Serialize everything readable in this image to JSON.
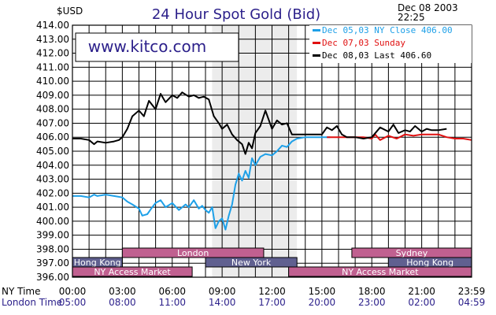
{
  "chart_data": {
    "type": "line",
    "title": "24 Hour Spot Gold (Bid)",
    "ylabel": "$USD",
    "timestamp": [
      "Dec 08 2003",
      "22:25"
    ],
    "ylim": [
      396,
      414
    ],
    "y_ticks": [
      "396.00",
      "397.00",
      "398.00",
      "399.00",
      "400.00",
      "401.00",
      "402.00",
      "403.00",
      "404.00",
      "405.00",
      "406.00",
      "407.00",
      "408.00",
      "409.00",
      "410.00",
      "411.00",
      "412.00",
      "413.00",
      "414.00"
    ],
    "x_range_hours": [
      0,
      24
    ],
    "ny_time_label": "NY Time",
    "london_time_label": "London Time",
    "ny_ticks": [
      "00:00",
      "03:00",
      "06:00",
      "09:00",
      "12:00",
      "15:00",
      "18:00",
      "21:00",
      "23:59"
    ],
    "london_ticks": [
      "05:00",
      "08:00",
      "11:00",
      "14:00",
      "17:00",
      "20:00",
      "23:00",
      "02:00",
      "04:59"
    ],
    "watermark": "www.kitco.com",
    "legend": [
      {
        "text": "Dec 05,03  NY  Close  406.00",
        "color": "#1ea0e8"
      },
      {
        "text": "Dec 07,03          Sunday",
        "color": "#e01010"
      },
      {
        "text": "Dec 08,03  Last  406.60",
        "color": "#000000"
      }
    ],
    "sessions": [
      {
        "label": "London",
        "start": 3,
        "end": 11.5,
        "row": 0,
        "color": "#c06090"
      },
      {
        "label": "Sydney",
        "start": 16.8,
        "end": 24,
        "row": 0,
        "color": "#c06090"
      },
      {
        "label": "Hong Kong",
        "start": 0,
        "end": 3,
        "row": 1,
        "color": "#606090"
      },
      {
        "label": "New York",
        "start": 8,
        "end": 13.5,
        "row": 1,
        "color": "#606090"
      },
      {
        "label": "Hong Kong",
        "start": 19,
        "end": 24,
        "row": 1,
        "color": "#606090"
      },
      {
        "label": "NY Access Market",
        "start": 0,
        "end": 7.2,
        "row": 2,
        "color": "#c06090"
      },
      {
        "label": "NY Access Market",
        "start": 13,
        "end": 24,
        "row": 2,
        "color": "#c06090"
      }
    ],
    "series": [
      {
        "name": "Dec 05,03",
        "color": "#1ea0e8",
        "x": [
          0,
          0.5,
          1,
          1.3,
          1.5,
          2,
          2.5,
          3,
          3.3,
          3.6,
          4,
          4.2,
          4.5,
          4.8,
          5,
          5.3,
          5.6,
          6,
          6.4,
          6.8,
          7,
          7.3,
          7.6,
          7.8,
          8,
          8.2,
          8.4,
          8.6,
          8.8,
          9,
          9.2,
          9.4,
          9.6,
          9.8,
          10,
          10.2,
          10.4,
          10.6,
          10.8,
          11,
          11.3,
          11.6,
          12,
          12.3,
          12.6,
          12.9,
          13.2,
          13.5,
          14,
          14.5,
          15,
          15.5
        ],
        "values": [
          401.8,
          401.8,
          401.7,
          401.9,
          401.8,
          401.9,
          401.8,
          401.7,
          401.4,
          401.2,
          400.9,
          400.4,
          400.5,
          401.0,
          401.3,
          401.5,
          401.0,
          401.3,
          400.8,
          401.2,
          401.0,
          401.5,
          400.9,
          401.1,
          400.8,
          400.6,
          401.0,
          399.5,
          400.0,
          400.2,
          399.4,
          400.4,
          401.2,
          402.6,
          403.4,
          402.9,
          403.6,
          403.1,
          404.5,
          404.0,
          404.6,
          404.8,
          404.7,
          405.0,
          405.4,
          405.3,
          405.7,
          405.9,
          406.0,
          406.0,
          406.0,
          406.0
        ]
      },
      {
        "name": "Dec 07,03",
        "color": "#e01010",
        "x": [
          15.3,
          16,
          16.5,
          17,
          17.5,
          18,
          18.2,
          18.5,
          19,
          19.5,
          20,
          20.5,
          21,
          21.5,
          22,
          22.5,
          23,
          23.5,
          24
        ],
        "values": [
          406.0,
          406.0,
          406.0,
          406.0,
          406.0,
          405.9,
          406.2,
          405.8,
          406.1,
          405.9,
          406.2,
          406.1,
          406.2,
          406.2,
          406.2,
          406.0,
          405.9,
          405.9,
          405.8
        ]
      },
      {
        "name": "Dec 08,03",
        "color": "#000000",
        "x": [
          0,
          0.5,
          1,
          1.3,
          1.5,
          2,
          2.5,
          2.8,
          3,
          3.3,
          3.6,
          4,
          4.3,
          4.6,
          5,
          5.3,
          5.6,
          6,
          6.3,
          6.6,
          7,
          7.3,
          7.6,
          7.9,
          8.2,
          8.5,
          8.8,
          9,
          9.3,
          9.6,
          9.9,
          10.2,
          10.4,
          10.6,
          10.8,
          11,
          11.3,
          11.6,
          12,
          12.3,
          12.6,
          12.9,
          13.2,
          13.5,
          14,
          14.5,
          15,
          15.3,
          15.6,
          15.9,
          16.2,
          16.5,
          17,
          17.5,
          18,
          18.5,
          19,
          19.3,
          19.6,
          20,
          20.3,
          20.6,
          21,
          21.3,
          21.6,
          22,
          22.5
        ],
        "values": [
          405.9,
          405.9,
          405.8,
          405.5,
          405.7,
          405.6,
          405.7,
          405.8,
          406.0,
          406.6,
          407.5,
          407.9,
          407.5,
          408.6,
          408.0,
          409.1,
          408.5,
          409.0,
          408.8,
          409.2,
          408.9,
          409.0,
          408.8,
          408.9,
          408.7,
          407.5,
          407.0,
          406.6,
          406.9,
          406.2,
          405.8,
          405.5,
          404.8,
          405.6,
          405.2,
          406.3,
          406.8,
          407.9,
          406.6,
          407.2,
          406.9,
          407.0,
          406.2,
          406.2,
          406.2,
          406.2,
          406.2,
          406.7,
          406.5,
          406.8,
          406.2,
          406.0,
          406.0,
          405.9,
          406.0,
          406.7,
          406.4,
          406.9,
          406.3,
          406.5,
          406.4,
          406.8,
          406.4,
          406.6,
          406.5,
          406.5,
          406.6
        ]
      }
    ]
  }
}
